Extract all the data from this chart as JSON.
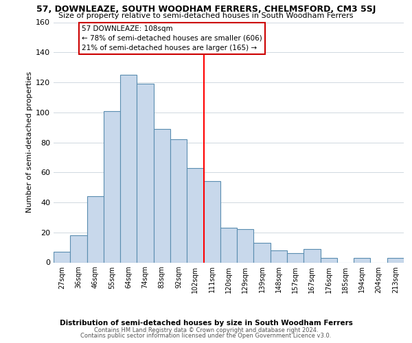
{
  "title": "57, DOWNLEAZE, SOUTH WOODHAM FERRERS, CHELMSFORD, CM3 5SJ",
  "subtitle": "Size of property relative to semi-detached houses in South Woodham Ferrers",
  "xlabel": "Distribution of semi-detached houses by size in South Woodham Ferrers",
  "ylabel": "Number of semi-detached properties",
  "categories": [
    "27sqm",
    "36sqm",
    "46sqm",
    "55sqm",
    "64sqm",
    "74sqm",
    "83sqm",
    "92sqm",
    "102sqm",
    "111sqm",
    "120sqm",
    "129sqm",
    "139sqm",
    "148sqm",
    "157sqm",
    "167sqm",
    "176sqm",
    "185sqm",
    "194sqm",
    "204sqm",
    "213sqm"
  ],
  "values": [
    7,
    18,
    44,
    101,
    125,
    119,
    89,
    82,
    63,
    54,
    23,
    22,
    13,
    8,
    6,
    9,
    3,
    0,
    3,
    0,
    3
  ],
  "bar_color": "#c8d8eb",
  "bar_edge_color": "#5a8db0",
  "highlight_line_index": 9,
  "highlight_label": "57 DOWNLEAZE: 108sqm",
  "annotation_line1": "← 78% of semi-detached houses are smaller (606)",
  "annotation_line2": "21% of semi-detached houses are larger (165) →",
  "annotation_box_color": "#ffffff",
  "annotation_box_edge": "#cc0000",
  "ylim": [
    0,
    160
  ],
  "yticks": [
    0,
    20,
    40,
    60,
    80,
    100,
    120,
    140,
    160
  ],
  "footer_line1": "Contains HM Land Registry data © Crown copyright and database right 2024.",
  "footer_line2": "Contains public sector information licensed under the Open Government Licence v3.0.",
  "bg_color": "#ffffff",
  "grid_color": "#d0d8e0"
}
